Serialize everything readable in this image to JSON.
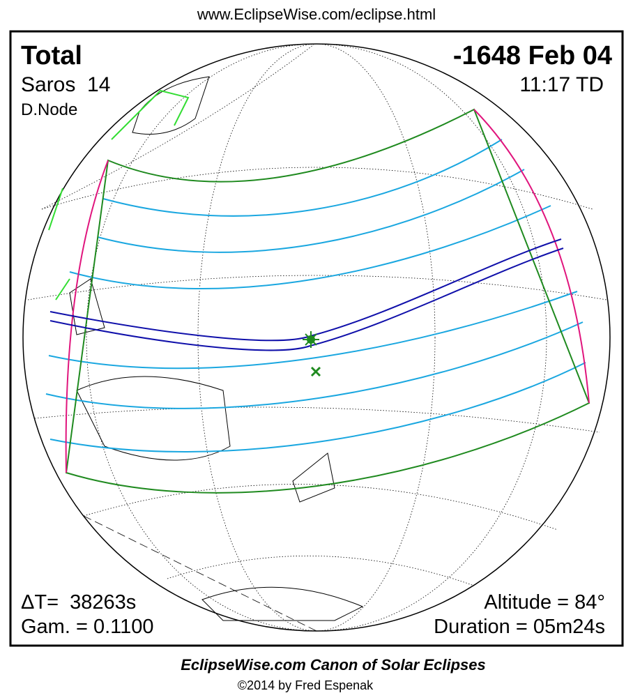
{
  "header": {
    "url": "www.EclipseWise.com/eclipse.html"
  },
  "eclipse": {
    "type": "Total",
    "date": "-1648 Feb 04",
    "saros": "Saros  14",
    "time": "11:17 TD",
    "node": "D.Node",
    "delta_t": "ΔT=  38263s",
    "gamma": "Gam. = 0.1100",
    "altitude": "Altitude = 84°",
    "duration": "Duration = 05m24s"
  },
  "footer": {
    "title": "EclipseWise.com Canon of Solar Eclipses",
    "copyright": "©2014 by Fred Espenak"
  }
}
